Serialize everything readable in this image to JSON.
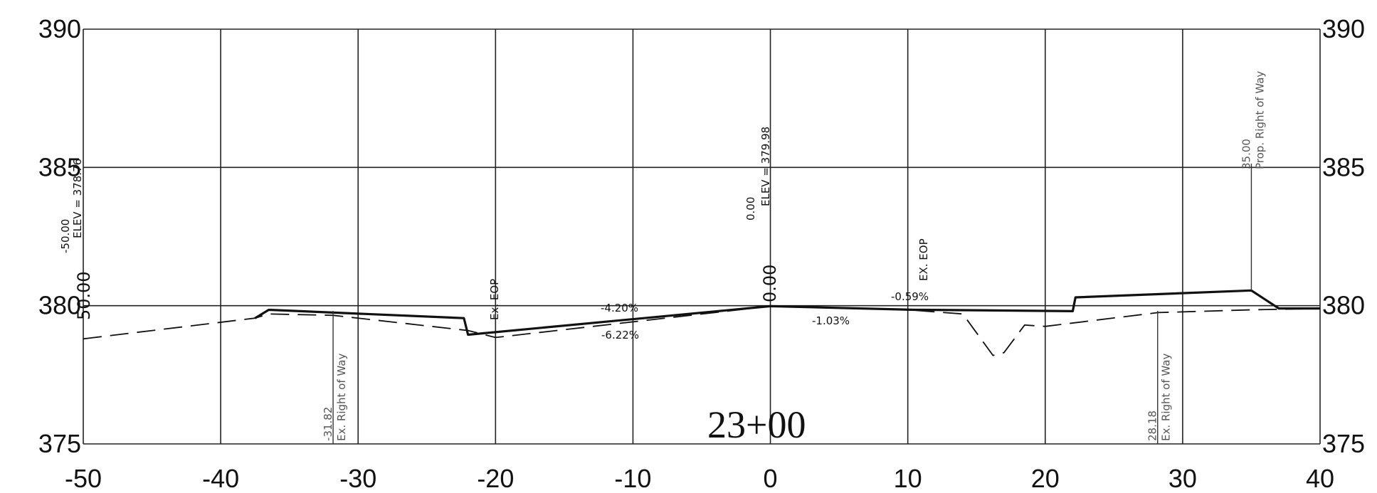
{
  "station_label": "23+00",
  "chart_data": {
    "type": "line",
    "title": "",
    "xlabel": "",
    "ylabel": "",
    "xlim": [
      -50,
      40
    ],
    "ylim": [
      375,
      390
    ],
    "x_ticks": [
      "-50",
      "-40",
      "-30",
      "-20",
      "-10",
      "0",
      "10",
      "20",
      "30",
      "40"
    ],
    "y_ticks_left": [
      "375",
      "380",
      "385",
      "390"
    ],
    "y_ticks_right": [
      "375",
      "380",
      "385",
      "390"
    ],
    "grid": true,
    "series": [
      {
        "style": "solid-heavy",
        "x": [
          -37.5,
          -36.5,
          -22.3,
          -22.0,
          0,
          10.5,
          11.2,
          22.0,
          22.2,
          35.0,
          37.0,
          40
        ],
        "y": [
          379.55,
          379.85,
          379.55,
          378.95,
          379.98,
          379.85,
          379.85,
          379.8,
          380.3,
          380.55,
          379.9,
          379.9
        ]
      },
      {
        "style": "dashed",
        "x": [
          -50,
          -37.5,
          -36.5,
          -31.8,
          -22.0,
          -20.0,
          0,
          10.0,
          14.0,
          16.2,
          17.0,
          18.5,
          20.0,
          28.2,
          35.0,
          40
        ],
        "y": [
          378.8,
          379.55,
          379.7,
          379.65,
          379.1,
          378.85,
          379.98,
          379.85,
          379.7,
          378.2,
          378.3,
          379.3,
          379.25,
          379.75,
          379.85,
          379.9
        ]
      }
    ],
    "vertical_markers": [
      {
        "x": -31.82,
        "label": "Ex. Right of Way",
        "value": "-31.82"
      },
      {
        "x": 28.18,
        "label": "Ex. Right of Way",
        "value": "28.18"
      },
      {
        "x": 35.0,
        "label": "Prop. Right of Way",
        "value": "35.00"
      }
    ],
    "annotations": [
      {
        "id": "left_offset",
        "text": "-50.00"
      },
      {
        "id": "left_elev",
        "text": "ELEV = 378.76"
      },
      {
        "id": "left_value",
        "text": "50.00"
      },
      {
        "id": "center_offset",
        "text": "0.00"
      },
      {
        "id": "center_elev",
        "text": "ELEV = 379.98"
      },
      {
        "id": "center_value",
        "text": "0.00"
      },
      {
        "id": "ex_eop_left",
        "text": "Ex. EOP"
      },
      {
        "id": "ex_eop_right",
        "text": "EX. EOP"
      },
      {
        "id": "slope_a",
        "text": "-4.20%"
      },
      {
        "id": "slope_b",
        "text": "-6.22%"
      },
      {
        "id": "slope_c",
        "text": "-1.03%"
      },
      {
        "id": "slope_d",
        "text": "-0.59%"
      }
    ]
  }
}
